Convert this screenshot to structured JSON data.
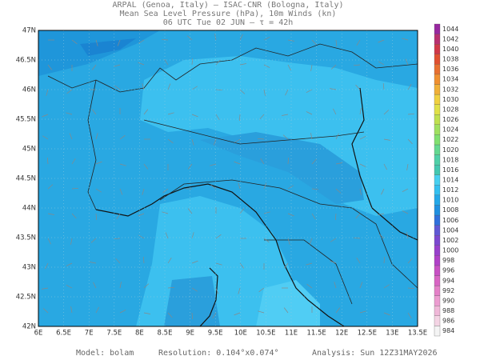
{
  "header": {
    "lines": [
      "ARPAL (Genoa, Italy)  —  ISAC-CNR (Bologna, Italy)",
      "Mean Sea Level Pressure (hPa), 10m Winds (kn)",
      "06 UTC Tue 02 JUN  –  τ = 42h"
    ]
  },
  "map": {
    "lat_labels": [
      "47N",
      "46.5N",
      "46N",
      "45.5N",
      "45N",
      "44.5N",
      "44N",
      "43.5N",
      "43N",
      "42.5N",
      "42N"
    ],
    "lon_labels": [
      "6E",
      "6.5E",
      "7E",
      "7.5E",
      "8E",
      "8.5E",
      "9E",
      "9.5E",
      "10E",
      "10.5E",
      "11E",
      "11.5E",
      "12E",
      "12.5E",
      "13E",
      "13.5E"
    ]
  },
  "colorbar": {
    "labels": [
      984,
      986,
      988,
      990,
      992,
      994,
      996,
      998,
      1000,
      1002,
      1004,
      1006,
      1008,
      1010,
      1012,
      1014,
      1016,
      1018,
      1020,
      1022,
      1024,
      1026,
      1028,
      1030,
      1032,
      1034,
      1036,
      1038,
      1040,
      1042,
      1044
    ],
    "colors": [
      "#f4f4f4",
      "#f4d4e4",
      "#f0b8d8",
      "#ec9cd0",
      "#e480c8",
      "#d864c4",
      "#c850c4",
      "#b040c8",
      "#9840cc",
      "#7c48d0",
      "#6058d4",
      "#3070dc",
      "#2090e0",
      "#24a8e8",
      "#34c0f0",
      "#48d0f0",
      "#44c8b0",
      "#50d0a8",
      "#64d890",
      "#80e070",
      "#a0e060",
      "#c0e050",
      "#e0e048",
      "#f0d040",
      "#f0b038",
      "#f09030",
      "#e87030",
      "#e05030",
      "#d03848",
      "#b83070",
      "#9828a0"
    ]
  },
  "footer": {
    "model": "Model: bolam",
    "resolution": "Resolution: 0.104°x0.074°",
    "analysis": "Analysis: Sun 12Z31MAY2026"
  }
}
